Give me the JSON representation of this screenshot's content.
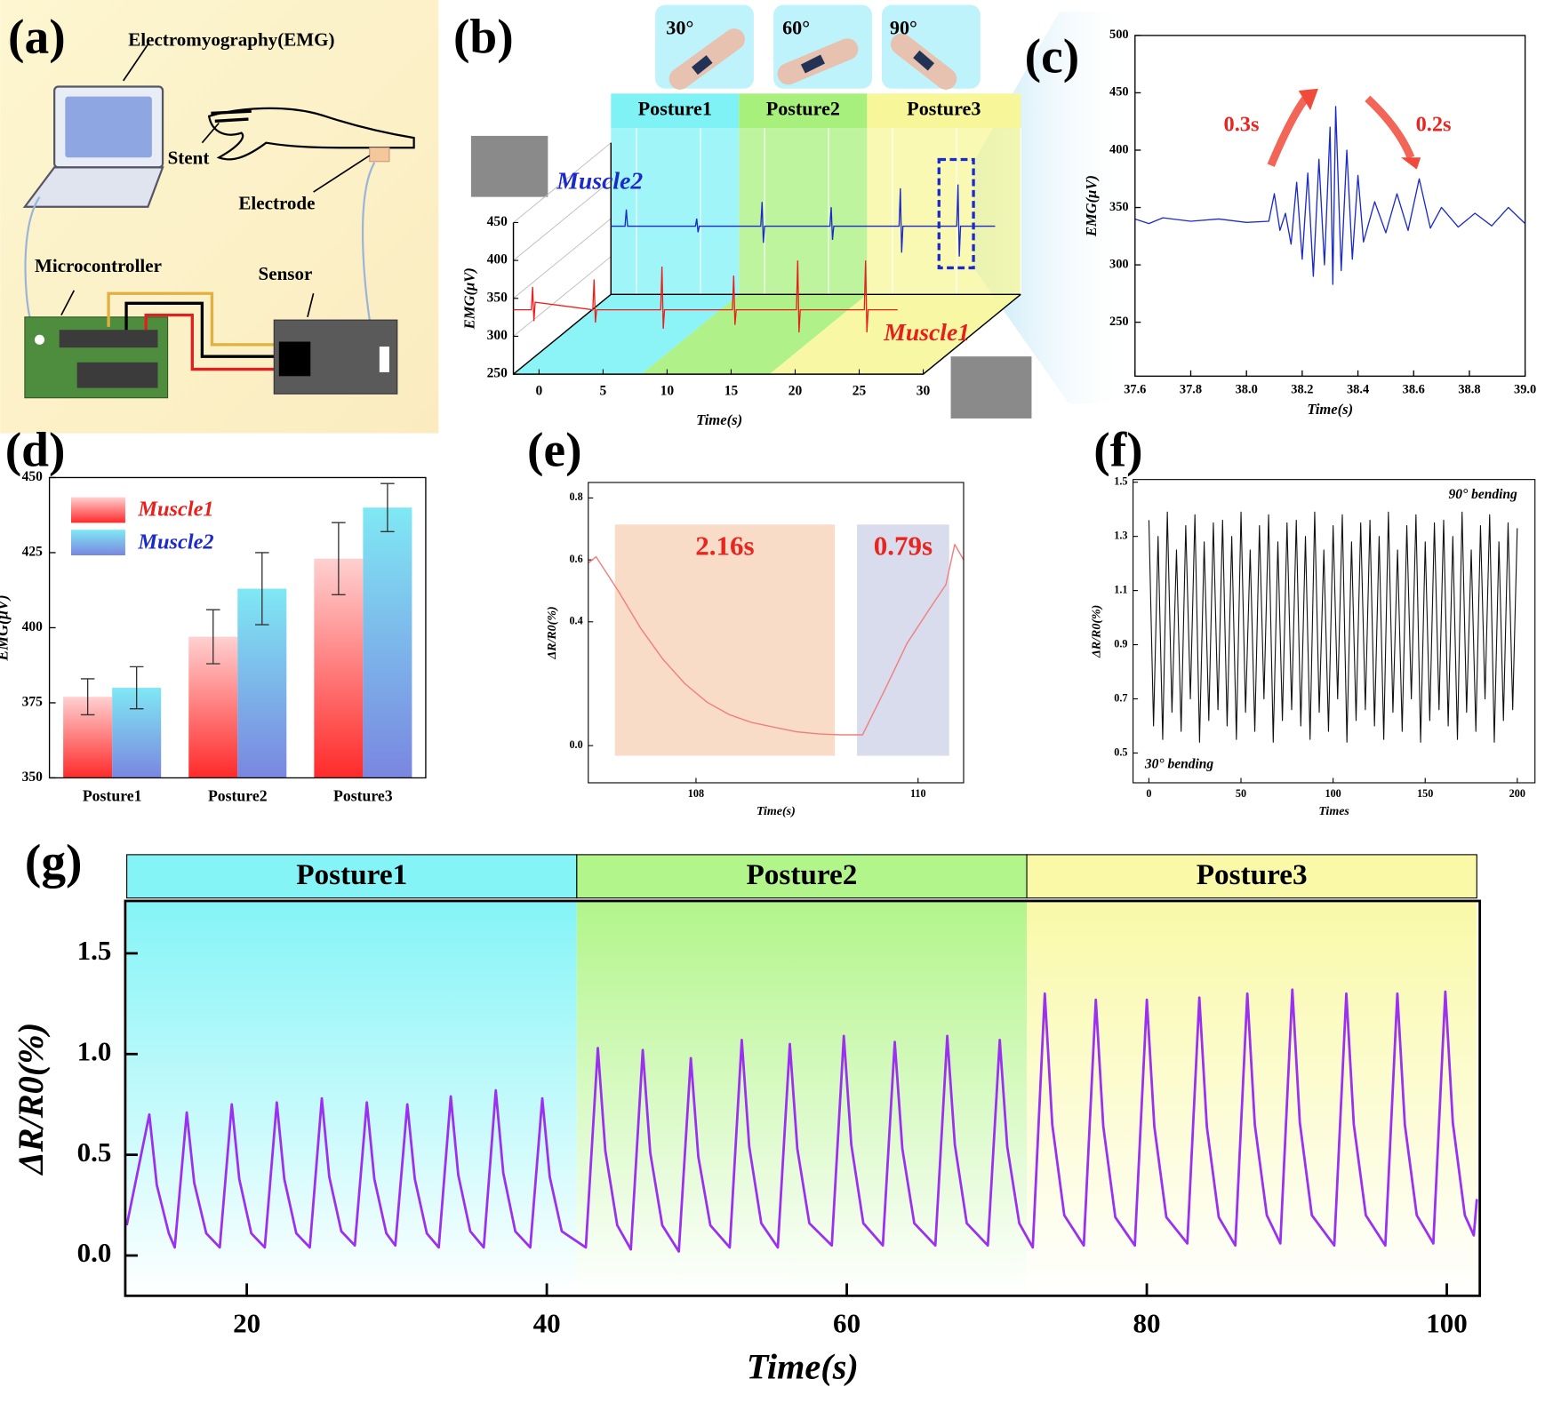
{
  "panel_labels": [
    "(a)",
    "(b)",
    "(c)",
    "(d)",
    "(e)",
    "(f)",
    "(g)"
  ],
  "diagram": {
    "labels": [
      "Electromyography(EMG)",
      "Stent",
      "Electrode",
      "Microcontroller",
      "Sensor"
    ]
  },
  "chart_data": [
    {
      "type": "line3d",
      "xlabel": "Time(s)",
      "ylabel": "EMG(μV)",
      "xlim": [
        -2,
        30
      ],
      "ylim": [
        250,
        450
      ],
      "xticks": [
        0,
        5,
        10,
        15,
        20,
        25,
        30
      ],
      "yticks": [
        250,
        300,
        350,
        400,
        450
      ],
      "angles": [
        "30°",
        "60°",
        "90°"
      ],
      "regions": [
        {
          "label": "Posture1",
          "start": -2,
          "end": 8,
          "color": "#7ff2f6"
        },
        {
          "label": "Posture2",
          "start": 8,
          "end": 18,
          "color": "#a8f07c"
        },
        {
          "label": "Posture3",
          "start": 18,
          "end": 30,
          "color": "#f7f79a"
        }
      ],
      "series": [
        {
          "name": "Muscle1",
          "color": "#e8201c",
          "x": [
            -2,
            -0.6,
            -0.5,
            -0.4,
            -0.3,
            4.2,
            4.3,
            4.4,
            4.5,
            9.5,
            9.6,
            9.7,
            9.8,
            15.1,
            15.2,
            15.3,
            15.4,
            20.1,
            20.2,
            20.3,
            20.4,
            25.4,
            25.5,
            25.6,
            25.7,
            28
          ],
          "values": [
            335,
            335,
            365,
            320,
            345,
            335,
            375,
            318,
            335,
            335,
            392,
            310,
            335,
            335,
            380,
            315,
            335,
            335,
            400,
            305,
            335,
            335,
            400,
            305,
            335,
            335
          ]
        },
        {
          "name": "Muscle2",
          "color": "#1c2bc8",
          "x": [
            -2,
            -0.9,
            -0.8,
            -0.7,
            4.6,
            4.7,
            4.8,
            4.9,
            9.7,
            9.8,
            9.9,
            10.0,
            15.1,
            15.2,
            15.3,
            15.4,
            20.5,
            20.6,
            20.7,
            20.8,
            25.0,
            25.1,
            25.2,
            25.3,
            28
          ],
          "values": [
            340,
            340,
            362,
            340,
            340,
            350,
            332,
            340,
            340,
            372,
            318,
            340,
            340,
            365,
            322,
            340,
            340,
            390,
            305,
            340,
            340,
            395,
            300,
            340,
            340
          ]
        }
      ]
    },
    {
      "type": "line",
      "xlabel": "Time(s)",
      "ylabel": "EMG(μV)",
      "color": "#1c2bc8",
      "xlim": [
        37.6,
        39.0
      ],
      "ylim": [
        203,
        500
      ],
      "xticks": [
        37.6,
        37.8,
        {
          "value": 38.0,
          "label": "38.0"
        },
        38.2,
        38.4,
        38.6,
        38.8,
        {
          "value": 39.0,
          "label": "39.0"
        }
      ],
      "yticks": [
        250,
        300,
        350,
        400,
        450,
        500
      ],
      "annotations": [
        "0.3s",
        "0.2s"
      ],
      "x": [
        37.6,
        37.65,
        37.7,
        37.8,
        37.9,
        38.0,
        38.08,
        38.1,
        38.12,
        38.14,
        38.16,
        38.18,
        38.2,
        38.22,
        38.24,
        38.26,
        38.28,
        38.3,
        38.31,
        38.32,
        38.34,
        38.36,
        38.38,
        38.4,
        38.42,
        38.46,
        38.5,
        38.54,
        38.58,
        38.62,
        38.66,
        38.7,
        38.76,
        38.82,
        38.88,
        38.94,
        39.0
      ],
      "values": [
        340,
        336,
        341,
        338,
        340,
        337,
        338,
        362,
        330,
        345,
        318,
        372,
        305,
        380,
        290,
        392,
        300,
        420,
        283,
        438,
        295,
        400,
        305,
        378,
        320,
        355,
        328,
        362,
        330,
        375,
        332,
        350,
        333,
        345,
        334,
        350,
        336
      ]
    },
    {
      "type": "bar",
      "ylabel": "EMG(μV)",
      "categories": [
        "Posture1",
        "Posture2",
        "Posture3"
      ],
      "ylim": [
        350,
        450
      ],
      "yticks": [
        350,
        375,
        400,
        425,
        450
      ],
      "series": [
        {
          "name": "Muscle1",
          "color": "#ff2a2a",
          "label_color": "#e8201c",
          "values": [
            377,
            397,
            423
          ],
          "errors": [
            6,
            9,
            12
          ]
        },
        {
          "name": "Muscle2",
          "color": "#7fe8f4",
          "label_color": "#1c2bc8",
          "values": [
            380,
            413,
            440
          ],
          "errors": [
            7,
            12,
            8
          ]
        }
      ]
    },
    {
      "type": "line",
      "xlabel": "Time(s)",
      "ylabel": "ΔR/R0(%)",
      "color": "#f08080",
      "xlim": [
        107.03,
        110.41
      ],
      "ylim": [
        -0.12,
        0.85
      ],
      "xticks": [
        108,
        110
      ],
      "yticks": [
        {
          "value": 0,
          "label": "0.0"
        },
        0.4,
        0.6,
        0.8
      ],
      "regions": [
        {
          "label": "2.16s",
          "start": 107.27,
          "end": 109.25,
          "color": "#f8dcc8"
        },
        {
          "label": "0.79s",
          "start": 109.45,
          "end": 110.28,
          "color": "#d9dcec"
        }
      ],
      "x": [
        107.03,
        107.1,
        107.3,
        107.5,
        107.7,
        107.9,
        108.1,
        108.3,
        108.5,
        108.7,
        108.9,
        109.1,
        109.3,
        109.5,
        109.7,
        109.9,
        110.1,
        110.25,
        110.33,
        110.41
      ],
      "values": [
        0.59,
        0.61,
        0.5,
        0.38,
        0.28,
        0.2,
        0.14,
        0.1,
        0.075,
        0.06,
        0.045,
        0.038,
        0.035,
        0.035,
        0.18,
        0.33,
        0.44,
        0.52,
        0.65,
        0.6
      ]
    },
    {
      "type": "line",
      "xlabel": "Times",
      "ylabel": "ΔR/R0(%)",
      "color": "#111111",
      "xlim": [
        -8.6,
        209.6
      ],
      "ylim": [
        0.39,
        1.51
      ],
      "xticks": [
        0,
        50,
        100,
        150,
        200
      ],
      "yticks": [
        0.5,
        0.7,
        0.9,
        1.1,
        1.3,
        1.5
      ],
      "annotations": [
        "90° bending",
        "30° bending"
      ],
      "x": [
        0,
        2.5,
        5,
        7.5,
        10,
        12.5,
        15,
        17.5,
        20,
        22.5,
        25,
        27.5,
        30,
        32.5,
        35,
        37.5,
        40,
        42.5,
        45,
        47.5,
        50,
        52.5,
        55,
        57.5,
        60,
        62.5,
        65,
        67.5,
        70,
        72.5,
        75,
        77.5,
        80,
        82.5,
        85,
        87.5,
        90,
        92.5,
        95,
        97.5,
        100,
        102.5,
        105,
        107.5,
        110,
        112.5,
        115,
        117.5,
        120,
        122.5,
        125,
        127.5,
        130,
        132.5,
        135,
        137.5,
        140,
        142.5,
        145,
        147.5,
        150,
        152.5,
        155,
        157.5,
        160,
        162.5,
        165,
        167.5,
        170,
        172.5,
        175,
        177.5,
        180,
        182.5,
        185,
        187.5,
        190,
        192.5,
        195,
        197.5,
        200
      ],
      "values": [
        1.36,
        0.6,
        1.3,
        0.55,
        1.39,
        0.65,
        1.25,
        0.58,
        1.34,
        0.7,
        1.38,
        0.54,
        1.28,
        0.62,
        1.35,
        0.66,
        1.36,
        0.6,
        1.3,
        0.55,
        1.39,
        0.65,
        1.25,
        0.58,
        1.34,
        0.7,
        1.38,
        0.54,
        1.28,
        0.62,
        1.35,
        0.66,
        1.36,
        0.6,
        1.3,
        0.55,
        1.39,
        0.65,
        1.25,
        0.58,
        1.34,
        0.7,
        1.38,
        0.54,
        1.28,
        0.62,
        1.35,
        0.66,
        1.36,
        0.6,
        1.3,
        0.55,
        1.39,
        0.65,
        1.25,
        0.58,
        1.34,
        0.7,
        1.38,
        0.54,
        1.28,
        0.62,
        1.35,
        0.66,
        1.36,
        0.6,
        1.3,
        0.55,
        1.39,
        0.65,
        1.25,
        0.58,
        1.34,
        0.7,
        1.38,
        0.54,
        1.28,
        0.62,
        1.35,
        0.66,
        1.33
      ]
    },
    {
      "type": "line",
      "xlabel": "Time(s)",
      "ylabel": "ΔR/R0(%)",
      "color": "#9b30f0",
      "xlim": [
        11.9,
        102.2
      ],
      "ylim": [
        -0.2,
        1.76
      ],
      "xticks": [
        20,
        40,
        60,
        80,
        100
      ],
      "yticks": [
        {
          "value": 0,
          "label": "0.0"
        },
        0.5,
        {
          "value": 1,
          "label": "1.0"
        },
        1.5
      ],
      "regions": [
        {
          "label": "Posture1",
          "start": 12,
          "end": 42,
          "color": "#84f4f7"
        },
        {
          "label": "Posture2",
          "start": 42,
          "end": 72,
          "color": "#b2f58a"
        },
        {
          "label": "Posture3",
          "start": 72,
          "end": 102,
          "color": "#f9f9a8"
        }
      ],
      "x": [
        12.0,
        13.5,
        14.0,
        14.8,
        15.2,
        16.0,
        16.5,
        17.3,
        18.2,
        19.0,
        19.5,
        20.3,
        21.2,
        22.0,
        22.5,
        23.3,
        24.2,
        25.0,
        25.5,
        26.3,
        27.2,
        28.0,
        28.5,
        29.3,
        29.9,
        30.7,
        31.2,
        32.0,
        32.8,
        33.6,
        34.1,
        34.9,
        35.8,
        36.6,
        37.1,
        37.9,
        38.9,
        39.7,
        40.2,
        41.0,
        42.6,
        43.4,
        43.9,
        44.7,
        45.6,
        46.4,
        46.9,
        47.7,
        48.8,
        49.6,
        50.1,
        50.9,
        52.2,
        53.0,
        53.5,
        54.3,
        55.4,
        56.2,
        56.7,
        57.5,
        59.0,
        59.8,
        60.3,
        61.1,
        62.4,
        63.2,
        63.7,
        64.5,
        65.9,
        66.7,
        67.2,
        68.0,
        69.4,
        70.2,
        70.7,
        71.5,
        72.4,
        73.2,
        73.7,
        74.5,
        75.8,
        76.6,
        77.1,
        77.9,
        79.2,
        80.0,
        80.5,
        81.3,
        82.7,
        83.5,
        84.0,
        84.8,
        85.9,
        86.7,
        87.2,
        88.0,
        88.9,
        89.7,
        90.2,
        91.0,
        92.5,
        93.3,
        93.8,
        94.6,
        95.9,
        96.7,
        97.2,
        98.0,
        99.1,
        99.9,
        100.4,
        101.2,
        101.8,
        102.0
      ],
      "values": [
        0.15,
        0.7,
        0.35,
        0.11,
        0.04,
        0.71,
        0.36,
        0.11,
        0.04,
        0.75,
        0.38,
        0.11,
        0.04,
        0.76,
        0.38,
        0.11,
        0.04,
        0.78,
        0.39,
        0.12,
        0.05,
        0.76,
        0.38,
        0.11,
        0.05,
        0.75,
        0.38,
        0.11,
        0.04,
        0.79,
        0.4,
        0.12,
        0.04,
        0.82,
        0.41,
        0.12,
        0.04,
        0.78,
        0.39,
        0.12,
        0.04,
        1.03,
        0.52,
        0.15,
        0.03,
        1.02,
        0.51,
        0.15,
        0.02,
        0.98,
        0.49,
        0.15,
        0.04,
        1.07,
        0.54,
        0.16,
        0.04,
        1.05,
        0.53,
        0.16,
        0.05,
        1.09,
        0.55,
        0.16,
        0.05,
        1.06,
        0.53,
        0.16,
        0.05,
        1.09,
        0.55,
        0.16,
        0.05,
        1.07,
        0.54,
        0.16,
        0.04,
        1.3,
        0.65,
        0.2,
        0.05,
        1.27,
        0.64,
        0.19,
        0.05,
        1.27,
        0.64,
        0.19,
        0.06,
        1.28,
        0.64,
        0.19,
        0.05,
        1.3,
        0.65,
        0.2,
        0.06,
        1.32,
        0.66,
        0.2,
        0.05,
        1.3,
        0.65,
        0.2,
        0.05,
        1.3,
        0.65,
        0.2,
        0.06,
        1.31,
        0.66,
        0.2,
        0.1,
        0.28
      ]
    }
  ]
}
